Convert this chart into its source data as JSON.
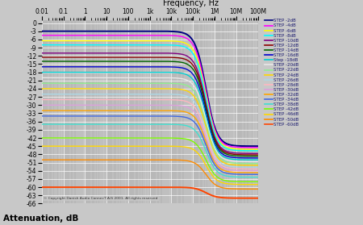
{
  "title": "Frequency, Hz",
  "xlabel": "Attenuation, dB",
  "ylabel_ticks": [
    0,
    -3,
    -6,
    -9,
    -12,
    -15,
    -18,
    -21,
    -24,
    -27,
    -30,
    -33,
    -36,
    -39,
    -42,
    -45,
    -48,
    -51,
    -54,
    -57,
    -60,
    -63,
    -66
  ],
  "freq_min": 0.01,
  "freq_max": 100000000.0,
  "ylim": [
    -66,
    1
  ],
  "background_color": "#b8b8b8",
  "fig_bg_color": "#c8c8c8",
  "copyright": "© Copyright Danish Audio ConnecT A/S 2001. All rights reserved",
  "steps": [
    {
      "label": "STEP -2dB",
      "flat_db": -3,
      "color": "#000080",
      "lw": 1.4
    },
    {
      "label": "STEP -4dB",
      "flat_db": -4.5,
      "color": "#ff00ff",
      "lw": 1.0
    },
    {
      "label": "STEP -6dB",
      "flat_db": -6.5,
      "color": "#ffff00",
      "lw": 1.0
    },
    {
      "label": "STEP -8dB",
      "flat_db": -8,
      "color": "#00ffff",
      "lw": 1.0
    },
    {
      "label": "STEP -10dB",
      "flat_db": -11,
      "color": "#800080",
      "lw": 1.0
    },
    {
      "label": "STEP -12dB",
      "flat_db": -12.5,
      "color": "#8b0000",
      "lw": 1.0
    },
    {
      "label": "STEP -14dB",
      "flat_db": -14,
      "color": "#006400",
      "lw": 1.0
    },
    {
      "label": "STEP -16dB",
      "flat_db": -16,
      "color": "#0000cd",
      "lw": 1.0
    },
    {
      "label": "Step -18dB",
      "flat_db": -18,
      "color": "#00ced1",
      "lw": 1.0
    },
    {
      "label": "STEP -20dB",
      "flat_db": -20,
      "color": "#e8e8e8",
      "lw": 1.0
    },
    {
      "label": "STEP -22dB",
      "flat_db": -22,
      "color": "#90ee90",
      "lw": 1.0
    },
    {
      "label": "STEP -24dB",
      "flat_db": -24,
      "color": "#ffd700",
      "lw": 1.0
    },
    {
      "label": "STEP -26dB",
      "flat_db": -26,
      "color": "#add8e6",
      "lw": 1.0
    },
    {
      "label": "STEP -28dB",
      "flat_db": -28,
      "color": "#ffb6c1",
      "lw": 1.0
    },
    {
      "label": "STEP -30dB",
      "flat_db": -30,
      "color": "#dda0dd",
      "lw": 1.0
    },
    {
      "label": "STEP -32dB",
      "flat_db": -32,
      "color": "#ffa500",
      "lw": 1.0
    },
    {
      "label": "STEP -34dB",
      "flat_db": -34,
      "color": "#4169e1",
      "lw": 1.0
    },
    {
      "label": "STEP -38dB",
      "flat_db": -37,
      "color": "#40e0d0",
      "lw": 1.0
    },
    {
      "label": "STEP -42dB",
      "flat_db": -42,
      "color": "#7cfc00",
      "lw": 1.0
    },
    {
      "label": "STEP -46dB",
      "flat_db": -45,
      "color": "#ffd700",
      "lw": 1.0
    },
    {
      "label": "STEP -50dB",
      "flat_db": -50,
      "color": "#ff8c00",
      "lw": 1.0
    },
    {
      "label": "STEP -60dB",
      "flat_db": -60,
      "color": "#ff4500",
      "lw": 1.4
    }
  ]
}
